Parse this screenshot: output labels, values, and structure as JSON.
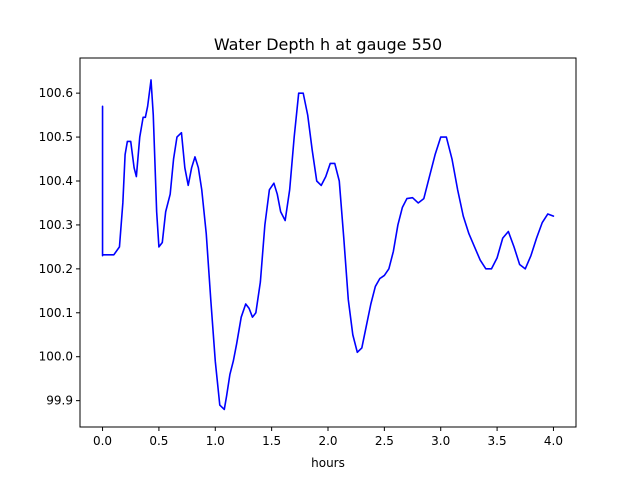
{
  "chart_data": {
    "type": "line",
    "title": "Water Depth h at gauge 550",
    "xlabel": "hours",
    "ylabel": "",
    "xlim": [
      -0.2,
      4.2
    ],
    "ylim": [
      99.84,
      100.68
    ],
    "xticks": [
      0.0,
      0.5,
      1.0,
      1.5,
      2.0,
      2.5,
      3.0,
      3.5,
      4.0
    ],
    "xtick_labels": [
      "0.0",
      "0.5",
      "1.0",
      "1.5",
      "2.0",
      "2.5",
      "3.0",
      "3.5",
      "4.0"
    ],
    "yticks": [
      99.9,
      100.0,
      100.1,
      100.2,
      100.3,
      100.4,
      100.5,
      100.6
    ],
    "ytick_labels": [
      "99.9",
      "100.0",
      "100.1",
      "100.2",
      "100.3",
      "100.4",
      "100.5",
      "100.6"
    ],
    "grid": false,
    "series": [
      {
        "color": "#0000ff",
        "x": [
          0.0,
          0.0,
          0.0,
          0.05,
          0.1,
          0.15,
          0.18,
          0.2,
          0.22,
          0.25,
          0.28,
          0.3,
          0.33,
          0.36,
          0.38,
          0.4,
          0.43,
          0.45,
          0.48,
          0.5,
          0.53,
          0.56,
          0.6,
          0.63,
          0.66,
          0.7,
          0.73,
          0.76,
          0.79,
          0.82,
          0.85,
          0.88,
          0.92,
          0.96,
          1.0,
          1.04,
          1.08,
          1.1,
          1.13,
          1.16,
          1.19,
          1.23,
          1.27,
          1.3,
          1.33,
          1.36,
          1.4,
          1.44,
          1.48,
          1.52,
          1.55,
          1.58,
          1.62,
          1.66,
          1.7,
          1.74,
          1.78,
          1.82,
          1.86,
          1.9,
          1.94,
          1.98,
          2.02,
          2.06,
          2.1,
          2.14,
          2.18,
          2.22,
          2.26,
          2.3,
          2.34,
          2.38,
          2.42,
          2.46,
          2.5,
          2.54,
          2.58,
          2.62,
          2.66,
          2.7,
          2.75,
          2.8,
          2.85,
          2.9,
          2.95,
          3.0,
          3.05,
          3.1,
          3.15,
          3.2,
          3.25,
          3.3,
          3.35,
          3.4,
          3.45,
          3.5,
          3.55,
          3.6,
          3.65,
          3.7,
          3.75,
          3.8,
          3.85,
          3.9,
          3.95,
          4.0
        ],
        "y": [
          100.57,
          100.23,
          100.232,
          100.232,
          100.232,
          100.25,
          100.35,
          100.46,
          100.49,
          100.49,
          100.43,
          100.41,
          100.5,
          100.545,
          100.545,
          100.57,
          100.63,
          100.55,
          100.33,
          100.25,
          100.26,
          100.33,
          100.37,
          100.45,
          100.5,
          100.51,
          100.43,
          100.39,
          100.43,
          100.455,
          100.43,
          100.38,
          100.28,
          100.13,
          99.99,
          99.89,
          99.88,
          99.91,
          99.96,
          99.99,
          100.03,
          100.09,
          100.12,
          100.11,
          100.09,
          100.1,
          100.17,
          100.3,
          100.38,
          100.395,
          100.37,
          100.33,
          100.31,
          100.38,
          100.5,
          100.6,
          100.6,
          100.55,
          100.47,
          100.4,
          100.39,
          100.41,
          100.44,
          100.44,
          100.4,
          100.27,
          100.13,
          100.05,
          100.01,
          100.02,
          100.07,
          100.12,
          100.16,
          100.178,
          100.185,
          100.2,
          100.24,
          100.3,
          100.34,
          100.36,
          100.362,
          100.35,
          100.36,
          100.41,
          100.46,
          100.5,
          100.5,
          100.45,
          100.38,
          100.32,
          100.28,
          100.25,
          100.22,
          100.2,
          100.2,
          100.225,
          100.27,
          100.285,
          100.25,
          100.21,
          100.2,
          100.23,
          100.27,
          100.305,
          100.325,
          100.32
        ]
      }
    ]
  }
}
